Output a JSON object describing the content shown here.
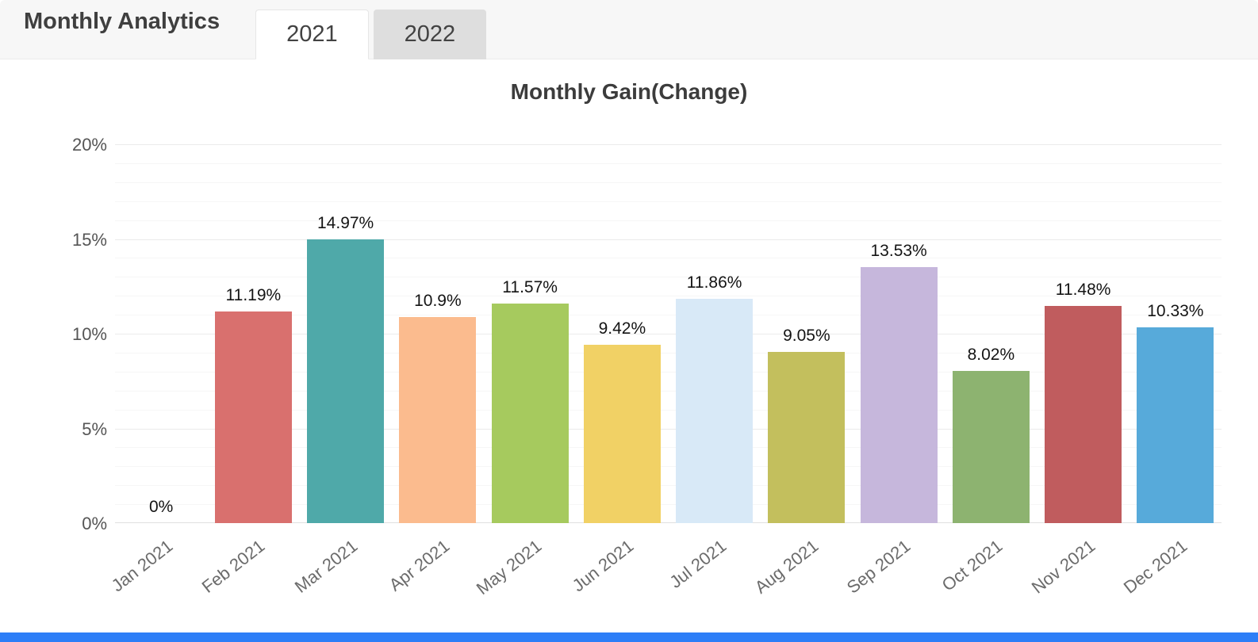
{
  "header": {
    "title": "Monthly Analytics",
    "tabs": [
      {
        "label": "2021",
        "active": true
      },
      {
        "label": "2022",
        "active": false
      }
    ]
  },
  "chart_data": {
    "type": "bar",
    "title": "Monthly Gain(Change)",
    "categories": [
      "Jan 2021",
      "Feb 2021",
      "Mar 2021",
      "Apr 2021",
      "May 2021",
      "Jun 2021",
      "Jul 2021",
      "Aug 2021",
      "Sep 2021",
      "Oct 2021",
      "Nov 2021",
      "Dec 2021"
    ],
    "values": [
      0,
      11.19,
      14.97,
      10.9,
      11.57,
      9.42,
      11.86,
      9.05,
      13.53,
      8.02,
      11.48,
      10.33
    ],
    "value_labels": [
      "0%",
      "11.19%",
      "14.97%",
      "10.9%",
      "11.57%",
      "9.42%",
      "11.86%",
      "9.05%",
      "13.53%",
      "8.02%",
      "11.48%",
      "10.33%"
    ],
    "bar_colors": [
      "#bdbdbd",
      "#d9706e",
      "#4fa9a9",
      "#fbbb8e",
      "#a6ca5e",
      "#f1d165",
      "#d8e9f7",
      "#c3bf5d",
      "#c6b7dc",
      "#8db370",
      "#c05c5e",
      "#57aada"
    ],
    "ylim": [
      0,
      20
    ],
    "ytick_values": [
      0,
      5,
      10,
      15,
      20
    ],
    "ytick_labels": [
      "0%",
      "5%",
      "10%",
      "15%",
      "20%"
    ],
    "grid": true,
    "legend": "none"
  },
  "colors": {
    "footer_bar": "#2d7ef7",
    "header_bg": "#f7f7f7",
    "tab_inactive_bg": "#dedede"
  }
}
